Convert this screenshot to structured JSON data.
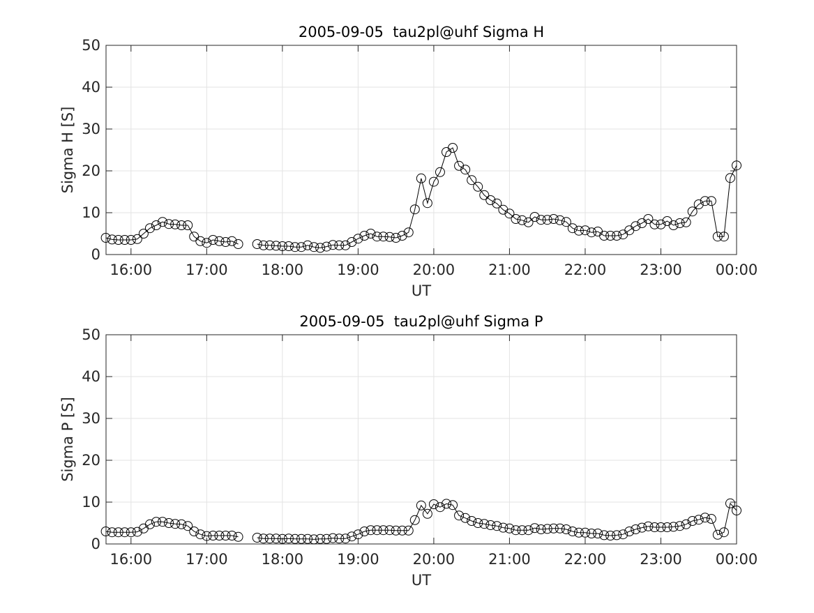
{
  "chart_data": [
    {
      "type": "line",
      "title": "2005-09-05  tau2pl@uhf Sigma H",
      "x_label": "UT",
      "y_label": "Sigma H [S]",
      "xlim": [
        15.67,
        24.0
      ],
      "ylim": [
        0,
        50
      ],
      "grid": true,
      "xticks": [
        {
          "value": 16,
          "label": "16:00"
        },
        {
          "value": 17,
          "label": "17:00"
        },
        {
          "value": 18,
          "label": "18:00"
        },
        {
          "value": 19,
          "label": "19:00"
        },
        {
          "value": 20,
          "label": "20:00"
        },
        {
          "value": 21,
          "label": "21:00"
        },
        {
          "value": 22,
          "label": "22:00"
        },
        {
          "value": 23,
          "label": "23:00"
        },
        {
          "value": 24,
          "label": "00:00"
        }
      ],
      "yticks": [
        0,
        10,
        20,
        30,
        40,
        50
      ],
      "x": [
        15.6667,
        15.75,
        15.8333,
        15.9167,
        16,
        16.0833,
        16.1667,
        16.25,
        16.3333,
        16.4167,
        16.5,
        16.5833,
        16.6667,
        16.75,
        16.8333,
        16.9167,
        17,
        17.0833,
        17.1667,
        17.25,
        17.3333,
        17.4167,
        17.5,
        17.5833,
        17.6667,
        17.75,
        17.8333,
        17.9167,
        18,
        18.0833,
        18.1667,
        18.25,
        18.3333,
        18.4167,
        18.5,
        18.5833,
        18.6667,
        18.75,
        18.8333,
        18.9167,
        19,
        19.0833,
        19.1667,
        19.25,
        19.3333,
        19.4167,
        19.5,
        19.5833,
        19.6667,
        19.75,
        19.8333,
        19.9167,
        20,
        20.0833,
        20.1667,
        20.25,
        20.3333,
        20.4167,
        20.5,
        20.5833,
        20.6667,
        20.75,
        20.8333,
        20.9167,
        21,
        21.0833,
        21.1667,
        21.25,
        21.3333,
        21.4167,
        21.5,
        21.5833,
        21.6667,
        21.75,
        21.8333,
        21.9167,
        22,
        22.0833,
        22.1667,
        22.25,
        22.3333,
        22.4167,
        22.5,
        22.5833,
        22.6667,
        22.75,
        22.8333,
        22.9167,
        23,
        23.0833,
        23.1667,
        23.25,
        23.3333,
        23.4167,
        23.5,
        23.5833,
        23.6667,
        23.75,
        23.8333,
        23.9167,
        24
      ],
      "series": [
        {
          "color": "#000000",
          "values": [
            4.0,
            3.6,
            3.5,
            3.5,
            3.5,
            3.7,
            5.0,
            6.3,
            7.0,
            7.8,
            7.3,
            7.2,
            7.0,
            7.0,
            4.3,
            3.2,
            2.8,
            3.5,
            3.2,
            3.0,
            3.2,
            2.5,
            null,
            null,
            2.5,
            2.2,
            2.2,
            2.1,
            2.0,
            2.0,
            1.8,
            1.8,
            2.2,
            1.8,
            1.6,
            1.9,
            2.3,
            2.2,
            2.2,
            3.0,
            3.8,
            4.5,
            5.0,
            4.3,
            4.3,
            4.2,
            4.0,
            4.5,
            5.3,
            10.8,
            18.2,
            12.3,
            17.4,
            19.7,
            24.5,
            25.5,
            21.2,
            20.3,
            17.8,
            16.2,
            14.2,
            13.0,
            12.2,
            10.7,
            9.8,
            8.5,
            8.2,
            7.7,
            9.0,
            8.3,
            8.3,
            8.5,
            8.2,
            7.8,
            6.3,
            5.7,
            5.8,
            5.3,
            5.5,
            4.5,
            4.5,
            4.5,
            4.8,
            5.8,
            6.8,
            7.5,
            8.5,
            7.2,
            7.2,
            8.0,
            7.0,
            7.5,
            7.7,
            10.3,
            12.0,
            12.8,
            12.8,
            4.3,
            4.3,
            18.3,
            21.3
          ]
        }
      ]
    },
    {
      "type": "line",
      "title": "2005-09-05  tau2pl@uhf Sigma P",
      "x_label": "UT",
      "y_label": "Sigma P [S]",
      "xlim": [
        15.67,
        24.0
      ],
      "ylim": [
        0,
        50
      ],
      "grid": true,
      "xticks": [
        {
          "value": 16,
          "label": "16:00"
        },
        {
          "value": 17,
          "label": "17:00"
        },
        {
          "value": 18,
          "label": "18:00"
        },
        {
          "value": 19,
          "label": "19:00"
        },
        {
          "value": 20,
          "label": "20:00"
        },
        {
          "value": 21,
          "label": "21:00"
        },
        {
          "value": 22,
          "label": "22:00"
        },
        {
          "value": 23,
          "label": "23:00"
        },
        {
          "value": 24,
          "label": "00:00"
        }
      ],
      "yticks": [
        0,
        10,
        20,
        30,
        40,
        50
      ],
      "x": [
        15.6667,
        15.75,
        15.8333,
        15.9167,
        16,
        16.0833,
        16.1667,
        16.25,
        16.3333,
        16.4167,
        16.5,
        16.5833,
        16.6667,
        16.75,
        16.8333,
        16.9167,
        17,
        17.0833,
        17.1667,
        17.25,
        17.3333,
        17.4167,
        17.5,
        17.5833,
        17.6667,
        17.75,
        17.8333,
        17.9167,
        18,
        18.0833,
        18.1667,
        18.25,
        18.3333,
        18.4167,
        18.5,
        18.5833,
        18.6667,
        18.75,
        18.8333,
        18.9167,
        19,
        19.0833,
        19.1667,
        19.25,
        19.3333,
        19.4167,
        19.5,
        19.5833,
        19.6667,
        19.75,
        19.8333,
        19.9167,
        20,
        20.0833,
        20.1667,
        20.25,
        20.3333,
        20.4167,
        20.5,
        20.5833,
        20.6667,
        20.75,
        20.8333,
        20.9167,
        21,
        21.0833,
        21.1667,
        21.25,
        21.3333,
        21.4167,
        21.5,
        21.5833,
        21.6667,
        21.75,
        21.8333,
        21.9167,
        22,
        22.0833,
        22.1667,
        22.25,
        22.3333,
        22.4167,
        22.5,
        22.5833,
        22.6667,
        22.75,
        22.8333,
        22.9167,
        23,
        23.0833,
        23.1667,
        23.25,
        23.3333,
        23.4167,
        23.5,
        23.5833,
        23.6667,
        23.75,
        23.8333,
        23.9167,
        24
      ],
      "series": [
        {
          "color": "#000000",
          "values": [
            3.0,
            2.8,
            2.8,
            2.8,
            2.8,
            2.9,
            3.7,
            4.7,
            5.3,
            5.3,
            5.0,
            4.8,
            4.7,
            4.3,
            3.0,
            2.3,
            1.9,
            2.0,
            2.0,
            2.0,
            2.0,
            1.7,
            null,
            null,
            1.5,
            1.3,
            1.3,
            1.3,
            1.2,
            1.3,
            1.2,
            1.2,
            1.2,
            1.1,
            1.2,
            1.2,
            1.4,
            1.3,
            1.3,
            1.8,
            2.3,
            3.0,
            3.3,
            3.3,
            3.3,
            3.3,
            3.2,
            3.2,
            3.2,
            5.7,
            9.2,
            7.2,
            9.5,
            8.8,
            9.6,
            9.3,
            6.8,
            6.2,
            5.5,
            5.0,
            4.8,
            4.5,
            4.3,
            3.9,
            3.7,
            3.3,
            3.3,
            3.3,
            3.8,
            3.5,
            3.6,
            3.7,
            3.7,
            3.5,
            3.0,
            2.7,
            2.7,
            2.5,
            2.5,
            2.1,
            2.0,
            2.1,
            2.3,
            3.0,
            3.5,
            3.9,
            4.2,
            4.0,
            4.0,
            4.0,
            4.1,
            4.3,
            4.7,
            5.5,
            5.8,
            6.3,
            6.0,
            2.2,
            2.8,
            9.7,
            8.0
          ]
        }
      ]
    }
  ]
}
